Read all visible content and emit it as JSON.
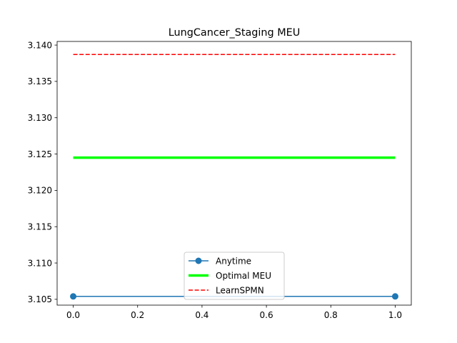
{
  "chart_data": {
    "type": "line",
    "title": "LungCancer_Staging MEU",
    "xlabel": "",
    "ylabel": "",
    "xlim": [
      -0.05,
      1.05
    ],
    "ylim": [
      3.1042,
      3.1405
    ],
    "xticks": [
      0.0,
      0.2,
      0.4,
      0.6,
      0.8,
      1.0
    ],
    "xtick_labels": [
      "0.0",
      "0.2",
      "0.4",
      "0.6",
      "0.8",
      "1.0"
    ],
    "yticks": [
      3.105,
      3.11,
      3.115,
      3.12,
      3.125,
      3.13,
      3.135,
      3.14
    ],
    "ytick_labels": [
      "3.105",
      "3.110",
      "3.115",
      "3.120",
      "3.125",
      "3.130",
      "3.135",
      "3.140"
    ],
    "grid": false,
    "legend_position": "lower-center",
    "series": [
      {
        "name": "Anytime",
        "x": [
          0.0,
          1.0
        ],
        "y": [
          3.1054,
          3.1054
        ],
        "color": "#1f77b4",
        "style": "solid",
        "marker": "circle",
        "width": 1.5
      },
      {
        "name": "Optimal MEU",
        "x": [
          0.0,
          1.0
        ],
        "y": [
          3.1245,
          3.1245
        ],
        "color": "#00ff00",
        "style": "solid",
        "marker": "none",
        "width": 3.5
      },
      {
        "name": "LearnSPMN",
        "x": [
          0.0,
          1.0
        ],
        "y": [
          3.1387,
          3.1387
        ],
        "color": "#ff0000",
        "style": "dashed",
        "marker": "none",
        "width": 1.5
      }
    ]
  }
}
